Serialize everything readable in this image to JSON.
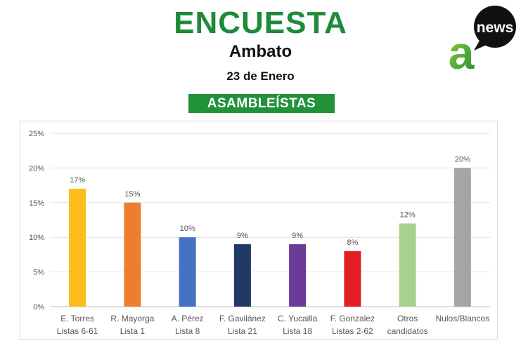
{
  "header": {
    "title": "ENCUESTA",
    "city": "Ambato",
    "date": "23 de Enero",
    "banner": "ASAMBLEÍSTAS"
  },
  "logo": {
    "mark": "a",
    "text": "news",
    "icon": "anews-logo"
  },
  "colors": {
    "title_green": "#1e8a3a",
    "banner_green": "#21913a"
  },
  "chart_data": {
    "type": "bar",
    "categories": [
      [
        "E. Torres",
        "Listas 6-61"
      ],
      [
        "R. Mayorga",
        "Lista 1"
      ],
      [
        "A. Pérez",
        "Lista 8"
      ],
      [
        "F. Gavilánez",
        "Lista 21"
      ],
      [
        "C. Yucailla",
        "Lista 18"
      ],
      [
        "F. Gonzalez",
        "Listas 2-62"
      ],
      [
        "Otros",
        "candidatos"
      ],
      [
        "Nulos/Blancos"
      ]
    ],
    "values": [
      17,
      15,
      10,
      9,
      9,
      8,
      12,
      20
    ],
    "value_labels": [
      "17%",
      "15%",
      "10%",
      "9%",
      "9%",
      "8%",
      "12%",
      "20%"
    ],
    "colors": [
      "#fbbd19",
      "#ed7d31",
      "#4472c4",
      "#1f3864",
      "#6a3b99",
      "#e31e24",
      "#a9d18e",
      "#a5a5a5"
    ],
    "yticks": [
      "0%",
      "5%",
      "10%",
      "15%",
      "20%",
      "25%"
    ],
    "ylim": [
      0,
      25
    ],
    "grid": true
  }
}
